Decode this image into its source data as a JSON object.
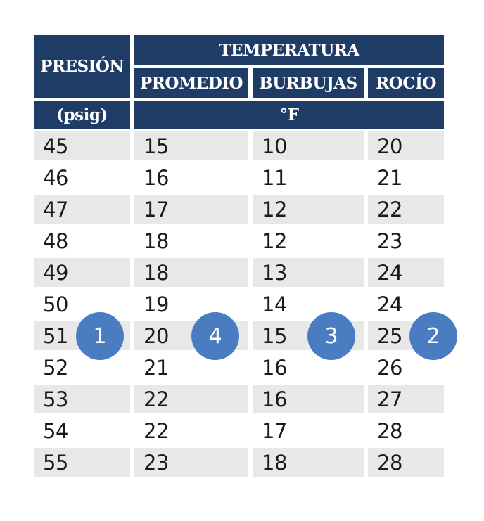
{
  "chart_data": {
    "type": "table",
    "header": {
      "presion": "PRESIÓN",
      "temperatura": "TEMPERATURA",
      "promedio": "PROMEDIO",
      "burbujas": "BURBUJAS",
      "rocio": "ROCÍO",
      "presion_unit": "(psig)",
      "temperatura_unit": "°F"
    },
    "column_keys": [
      "presion-psig",
      "promedio-f",
      "burbujas-f",
      "rocio-f"
    ],
    "rows": [
      [
        45,
        15,
        10,
        20
      ],
      [
        46,
        16,
        11,
        21
      ],
      [
        47,
        17,
        12,
        22
      ],
      [
        48,
        18,
        12,
        23
      ],
      [
        49,
        18,
        13,
        24
      ],
      [
        50,
        19,
        14,
        24
      ],
      [
        51,
        20,
        15,
        25
      ],
      [
        52,
        21,
        16,
        26
      ],
      [
        53,
        22,
        16,
        27
      ],
      [
        54,
        22,
        17,
        28
      ],
      [
        55,
        23,
        18,
        28
      ]
    ]
  },
  "callouts": [
    {
      "label": "1",
      "column": "PRESIÓN (psig)",
      "row": 51,
      "cell_value": 51
    },
    {
      "label": "2",
      "column": "ROCÍO °F",
      "row": 51,
      "cell_value": 25
    },
    {
      "label": "3",
      "column": "BURBUJAS °F",
      "row": 51,
      "cell_value": 15
    },
    {
      "label": "4",
      "column": "PROMEDIO °F",
      "row": 51,
      "cell_value": 20
    }
  ],
  "colors": {
    "header_bg": "#1f3c66",
    "header_text": "#ffffff",
    "row_alt_bg": "#e8e8e8",
    "row_bg": "#ffffff",
    "row_text": "#1a1a1a",
    "callout_bg": "#4a7cc2",
    "callout_text": "#ffffff"
  }
}
